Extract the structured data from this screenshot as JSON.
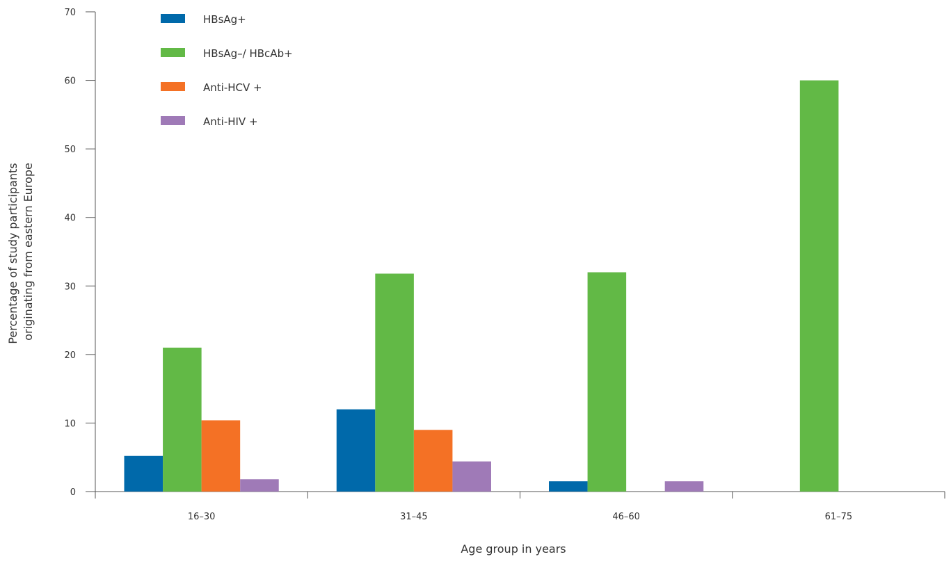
{
  "chart_data": {
    "type": "bar",
    "categories": [
      "16–30",
      "31–45",
      "46–60",
      "61–75"
    ],
    "series": [
      {
        "name": "HBsAg+",
        "color": "#0069aa",
        "values": [
          5.2,
          12,
          1.5,
          0
        ]
      },
      {
        "name": "HBsAg–/ HBcAb+",
        "color": "#62b946",
        "values": [
          21,
          31.8,
          32,
          60
        ]
      },
      {
        "name": "Anti-HCV +",
        "color": "#f47125",
        "values": [
          10.4,
          9,
          0,
          0
        ]
      },
      {
        "name": "Anti-HIV +",
        "color": "#9f7ab7",
        "values": [
          1.8,
          4.4,
          1.5,
          0
        ]
      }
    ],
    "xlabel": "Age group in years",
    "ylabel_lines": [
      "Percentage of study participants",
      "originating from eastern Europe"
    ],
    "ylim": [
      0,
      70
    ],
    "yticks": [
      0,
      10,
      20,
      30,
      40,
      50,
      60,
      70
    ],
    "legend_position": "top-left",
    "grid": false
  }
}
